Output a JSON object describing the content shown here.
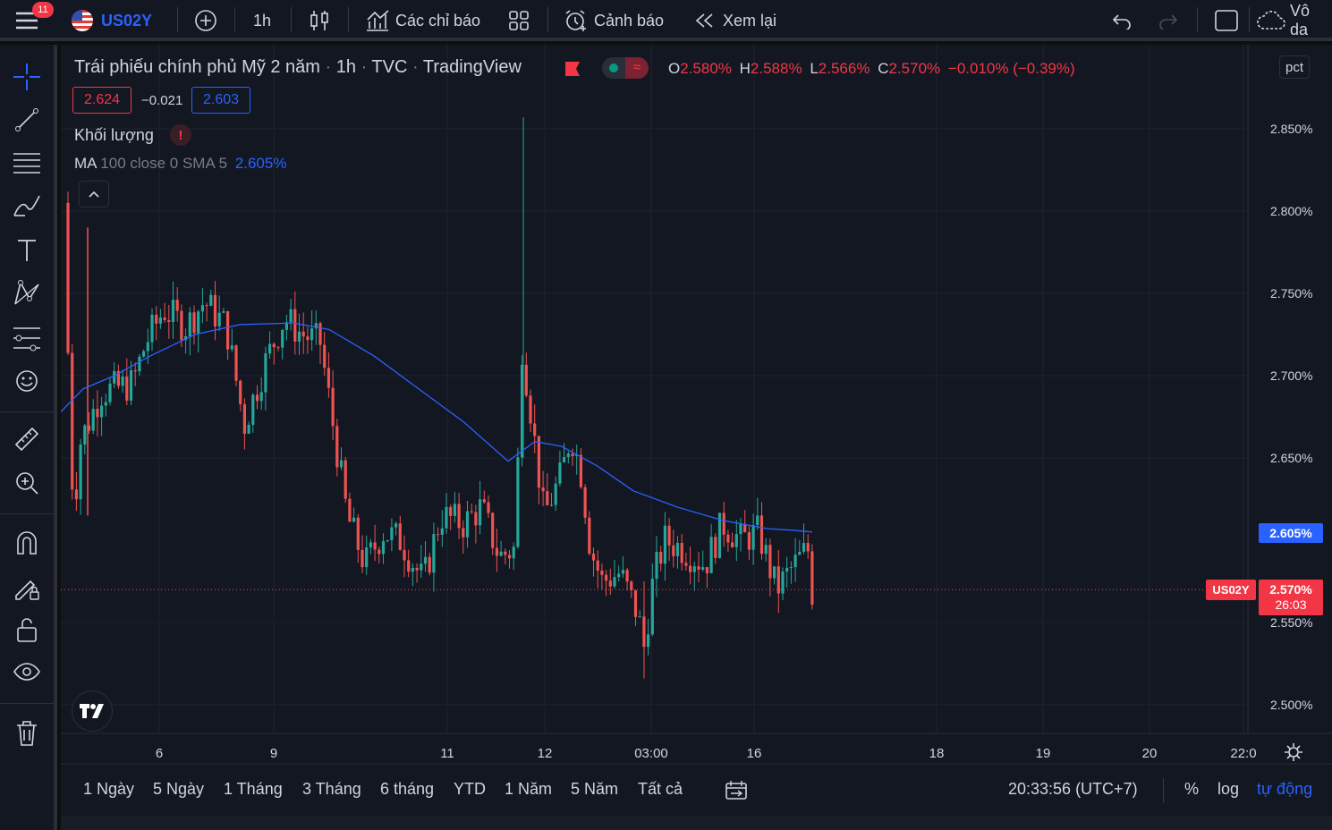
{
  "topbar": {
    "notifications": "11",
    "symbol": "US02Y",
    "interval": "1h",
    "indicators_label": "Các chỉ báo",
    "alerts_label": "Cảnh báo",
    "replay_label": "Xem lại",
    "cut_label": "Vô da"
  },
  "legend": {
    "title": "Trái phiếu chính phủ Mỹ 2 năm",
    "interval": "1h",
    "exchange": "TVC",
    "source": "TradingView",
    "o_label": "O",
    "o": "2.580%",
    "h_label": "H",
    "h": "2.588%",
    "l_label": "L",
    "l": "2.566%",
    "c_label": "C",
    "c": "2.570%",
    "change": "−0.010% (−0.39%)",
    "bid": "2.624",
    "spread": "−0.021",
    "ask": "2.603",
    "volume_label": "Khối lượng",
    "ma_label": "MA",
    "ma_params": "100 close 0 SMA 5",
    "ma_value": "2.605%"
  },
  "chart_data": {
    "type": "candlestick",
    "symbol": "US02Y",
    "interval": "1h",
    "scale_mode": "pct",
    "y_range": [
      2.486,
      2.897
    ],
    "y_ticks": [
      "2.850%",
      "2.800%",
      "2.750%",
      "2.700%",
      "2.650%",
      "2.550%",
      "2.500%"
    ],
    "y_tick_values": [
      2.85,
      2.8,
      2.75,
      2.7,
      2.65,
      2.55,
      2.5
    ],
    "x_ticks": [
      "6",
      "9",
      "11",
      "12",
      "03:00",
      "16",
      "18",
      "19",
      "20",
      "22:0"
    ],
    "current_price": "2.570%",
    "current_value": 2.57,
    "countdown": "26:03",
    "price_label": "US02Y",
    "ma_axis_label": "2.605%",
    "ma_axis_value": 2.605,
    "colors": {
      "up": "#26a69a",
      "down": "#ef5350",
      "ma": "#2962ff"
    }
  },
  "range_bar": {
    "ranges": [
      "1 Ngày",
      "5 Ngày",
      "1 Tháng",
      "3 Tháng",
      "6 tháng",
      "YTD",
      "1 Năm",
      "5 Năm",
      "Tất cả"
    ],
    "time": "20:33:56 (UTC+7)",
    "percent": "%",
    "log": "log",
    "auto": "tự động"
  },
  "axis": {
    "unit": "pct"
  }
}
